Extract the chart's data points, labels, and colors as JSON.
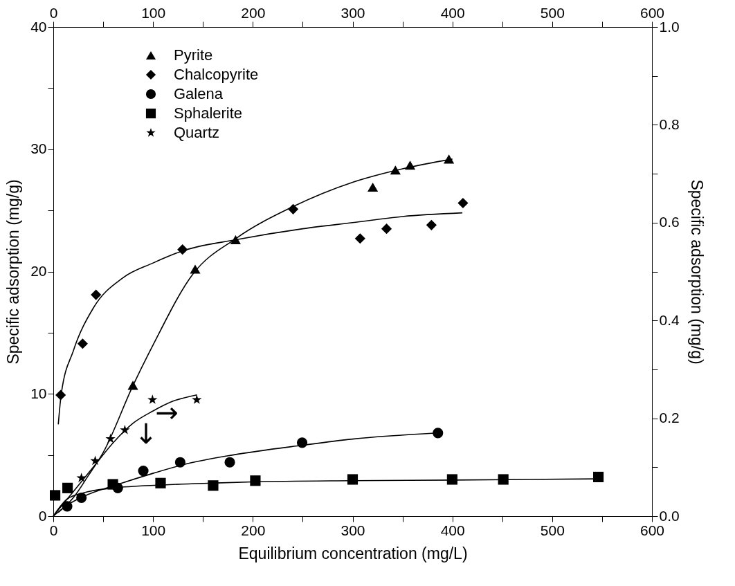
{
  "chart_data": {
    "type": "scatter",
    "xlabel": "Equilibrium concentration (mg/L)",
    "ylabel": "Specific adsorption (mg/g)",
    "y2label": "Specific adsorption (mg/g)",
    "xlim": [
      0,
      600
    ],
    "xticks": [
      0,
      {
        "value": 50,
        "label": null
      },
      100,
      {
        "value": 150,
        "label": null
      },
      200,
      {
        "value": 250,
        "label": null
      },
      300,
      {
        "value": 350,
        "label": null
      },
      400,
      {
        "value": 450,
        "label": null
      },
      500,
      {
        "value": 550,
        "label": null
      },
      600
    ],
    "x2lim": [
      0,
      600
    ],
    "x2ticks": [
      0,
      {
        "value": 50,
        "label": null
      },
      100,
      {
        "value": 150,
        "label": null
      },
      200,
      {
        "value": 250,
        "label": null
      },
      300,
      {
        "value": 350,
        "label": null
      },
      400,
      {
        "value": 450,
        "label": null
      },
      500,
      {
        "value": 550,
        "label": null
      },
      600
    ],
    "ylim": [
      0,
      40
    ],
    "yticks": [
      0,
      {
        "value": 5,
        "label": null
      },
      10,
      {
        "value": 15,
        "label": null
      },
      20,
      {
        "value": 25,
        "label": null
      },
      30,
      {
        "value": 35,
        "label": null
      },
      40
    ],
    "y2lim": [
      0,
      1.0
    ],
    "y2ticks": [
      {
        "value": 0,
        "label": "0.0"
      },
      {
        "value": 0.1,
        "label": null
      },
      0.2,
      {
        "value": 0.3,
        "label": null
      },
      0.4,
      {
        "value": 0.5,
        "label": null
      },
      0.6,
      {
        "value": 0.7,
        "label": null
      },
      0.8,
      {
        "value": 0.9,
        "label": null
      },
      {
        "value": 1.0,
        "label": "1.0"
      }
    ],
    "grid": false,
    "legend": "top left",
    "series": [
      {
        "name": "Pyrite",
        "color": "#000000",
        "marker": "triangle",
        "x": [
          79.8,
          142.2,
          182.7,
          320.2,
          342.9,
          357.6,
          396.5
        ],
        "values": [
          10.7,
          20.2,
          22.6,
          26.9,
          28.3,
          28.7,
          29.2
        ]
      },
      {
        "name": "Chalcopyrite",
        "color": "#000000",
        "marker": "diamond",
        "x": [
          7.4,
          29.4,
          42.8,
          129.5,
          240.4,
          307.5,
          334,
          379,
          410.6
        ],
        "values": [
          9.9,
          14.1,
          18.1,
          21.8,
          25.1,
          22.7,
          23.5,
          23.8,
          25.6
        ]
      },
      {
        "name": "Galena",
        "color": "#000000",
        "marker": "circle",
        "x": [
          13.9,
          28.2,
          64.7,
          90.2,
          127.2,
          176.9,
          249.4,
          385.5
        ],
        "values": [
          0.8,
          1.5,
          2.3,
          3.7,
          4.4,
          4.4,
          6.0,
          6.8
        ]
      },
      {
        "name": "Sphalerite",
        "color": "#000000",
        "marker": "square",
        "x": [
          1.8,
          14.3,
          59.7,
          107.5,
          160.2,
          202.5,
          300,
          399.8,
          451,
          546.3
        ],
        "values": [
          1.7,
          2.3,
          2.6,
          2.7,
          2.5,
          2.9,
          3.0,
          3.0,
          3.0,
          3.2
        ]
      },
      {
        "name": "Quartz",
        "color": "#000000",
        "marker": "star",
        "axis": "y2",
        "x": [
          28.2,
          42,
          57.3,
          71.7,
          99.4,
          143.8
        ],
        "values": [
          0.078,
          0.113,
          0.158,
          0.176,
          0.238,
          0.238
        ]
      },
      {
        "type": "line",
        "color": "#000000",
        "marker": "none",
        "x": [
          5,
          20,
          35,
          50,
          80,
          100,
          140,
          183,
          240,
          300,
          350,
          400
        ],
        "values": [
          0.3,
          1.5,
          3.3,
          5.2,
          10.7,
          14,
          19.8,
          22.7,
          25.3,
          27.3,
          28.4,
          29.2
        ]
      },
      {
        "type": "line",
        "color": "#000000",
        "marker": "none",
        "x": [
          5,
          8,
          20,
          40,
          70,
          100,
          130,
          183,
          250,
          300,
          350,
          410
        ],
        "values": [
          7.5,
          10,
          13.5,
          17,
          19.5,
          20.7,
          21.7,
          22.6,
          23.5,
          24,
          24.5,
          24.8
        ]
      },
      {
        "type": "line",
        "color": "#000000",
        "marker": "none",
        "x": [
          0,
          14,
          30,
          65,
          100,
          130,
          180,
          250,
          300,
          385
        ],
        "values": [
          0,
          0.9,
          1.6,
          2.6,
          3.5,
          4.2,
          5,
          5.8,
          6.3,
          6.8
        ]
      },
      {
        "type": "line",
        "color": "#000000",
        "marker": "none",
        "x": [
          0,
          14,
          30,
          60,
          110,
          160,
          200,
          300,
          400,
          546
        ],
        "values": [
          0,
          1.4,
          1.9,
          2.3,
          2.55,
          2.7,
          2.8,
          2.9,
          2.95,
          3.05
        ]
      },
      {
        "type": "line",
        "color": "#000000",
        "marker": "none",
        "axis": "y2",
        "x": [
          0,
          20,
          40,
          60,
          80,
          100,
          120,
          144
        ],
        "values": [
          0,
          0.05,
          0.1,
          0.15,
          0.19,
          0.215,
          0.235,
          0.248
        ]
      }
    ],
    "annotations": [
      "↓",
      "→"
    ]
  }
}
